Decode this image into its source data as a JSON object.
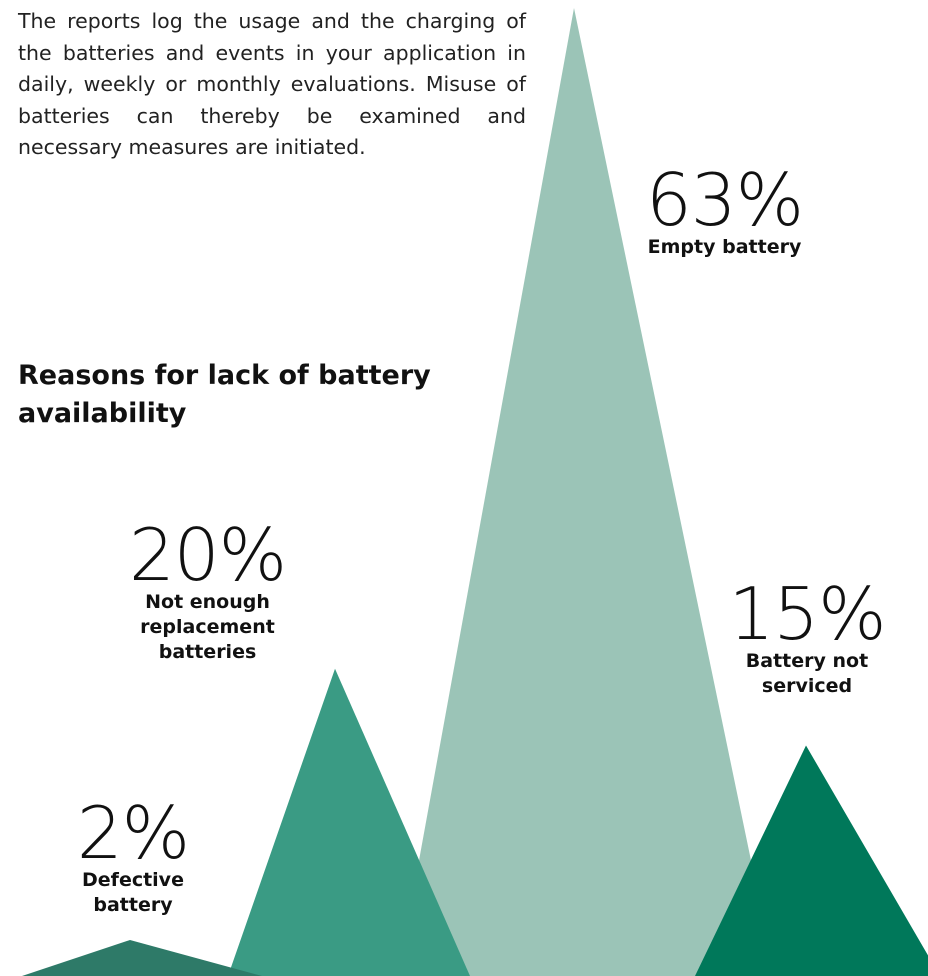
{
  "intro_text": "The reports log the usage and the charging of the batteries and events in your application in daily, weekly or monthly evaluations. Misuse of batteries can thereby be examined and necessary measures are initiated.",
  "chart_data": {
    "type": "area",
    "title": "Reasons for lack of battery availability",
    "unit": "%",
    "categories": [
      "Defective battery",
      "Not enough replacement batteries",
      "Empty battery",
      "Battery not serviced"
    ],
    "values": [
      2,
      20,
      63,
      15
    ],
    "value_labels": [
      "2%",
      "20%",
      "63%",
      "15%"
    ],
    "category_labels": [
      [
        "Defective",
        "battery"
      ],
      [
        "Not enough",
        "replacement",
        "batteries"
      ],
      [
        "Empty battery"
      ],
      [
        "Battery not",
        "serviced"
      ]
    ],
    "colors": [
      "#2e7a68",
      "#3a9b84",
      "#9bc4b7",
      "#00785a"
    ]
  }
}
